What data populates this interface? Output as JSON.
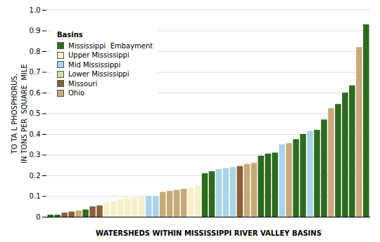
{
  "chart_data": {
    "type": "bar",
    "xlabel": "WATERSHEDS WITHIN MISSISSIPPI RIVER VALLEY BASINS",
    "ylabel": "TO TA L PHOSPHORUS,\nIN TONS PER  SQUARE  MILE",
    "categories": [
      null,
      null,
      null,
      null,
      null,
      null,
      null,
      null,
      null,
      null,
      null,
      null,
      null,
      null,
      null,
      null,
      null,
      null,
      null,
      null,
      null,
      null,
      null,
      null,
      null,
      null,
      null,
      null,
      null,
      null,
      null,
      null,
      null,
      null,
      null,
      null,
      null,
      null,
      null,
      null,
      null,
      null,
      null,
      null,
      null,
      null
    ],
    "values": [
      0.01,
      0.01,
      0.02,
      0.025,
      0.03,
      0.035,
      0.05,
      0.055,
      0.07,
      0.075,
      0.085,
      0.09,
      0.092,
      0.095,
      0.1,
      0.1,
      0.12,
      0.125,
      0.13,
      0.135,
      0.14,
      0.15,
      0.21,
      0.22,
      0.23,
      0.235,
      0.24,
      0.245,
      0.255,
      0.26,
      0.295,
      0.305,
      0.31,
      0.35,
      0.355,
      0.375,
      0.4,
      0.415,
      0.42,
      0.47,
      0.525,
      0.545,
      0.6,
      0.635,
      0.82,
      0.93
    ],
    "colors": [
      "#2d6a1f",
      "#2d6a1f",
      "#8b5e3c",
      "#8b5e3c",
      "#c8a97a",
      "#2d6a1f",
      "#8b5e3c",
      "#8b5e3c",
      "#f5f0c8",
      "#f5f0c8",
      "#f5f0c8",
      "#f5f0c8",
      "#f5f0c8",
      "#f5f0c8",
      "#aad4e8",
      "#aad4e8",
      "#c8a97a",
      "#c8a97a",
      "#c8a97a",
      "#c8a97a",
      "#f5f0c8",
      "#f5f0c8",
      "#2d6a1f",
      "#2d6a1f",
      "#aad4e8",
      "#aad4e8",
      "#aad4e8",
      "#8b5e3c",
      "#c8a97a",
      "#c8a97a",
      "#2d6a1f",
      "#2d6a1f",
      "#2d6a1f",
      "#aad4e8",
      "#c8a97a",
      "#2d6a1f",
      "#2d6a1f",
      "#aad4e8",
      "#2d6a1f",
      "#2d6a1f",
      "#c8a97a",
      "#2d6a1f",
      "#2d6a1f",
      "#2d6a1f",
      "#c8a97a",
      "#2d6a1f"
    ],
    "ylim": [
      0,
      1.0
    ],
    "yticks": [
      0,
      0.1,
      0.2,
      0.3,
      0.4,
      0.5,
      0.6,
      0.7,
      0.8,
      0.9,
      {
        "value": 1.0,
        "label": "1.0"
      }
    ],
    "grid": true,
    "tick_labels": "y",
    "legend": "upper left",
    "legend_title": "Basins",
    "legend_labels": [
      "Mississippi  Embayment",
      "Upper Mississippi",
      "Mid Mississippi",
      "Lower Mississippi",
      "Missouri",
      "Ohio"
    ],
    "legend_colors": [
      "#2d6a1f",
      "#f5f0c8",
      "#aad4e8",
      "#c8e6a0",
      "#8b5e3c",
      "#c8a97a"
    ]
  }
}
